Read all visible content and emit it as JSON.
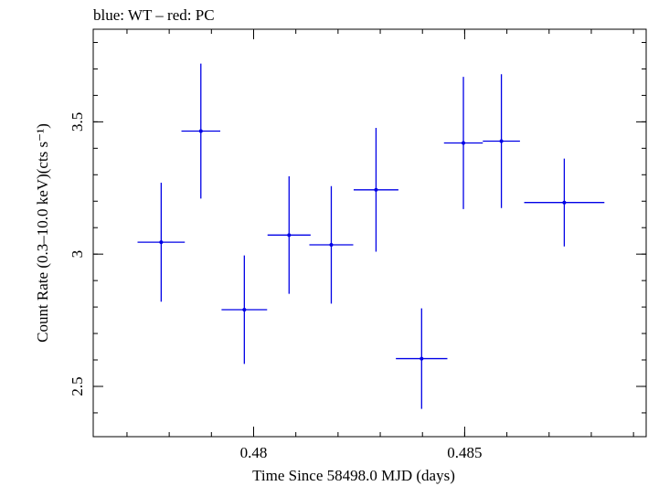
{
  "chart_data": {
    "type": "scatter",
    "title": "blue: WT – red: PC",
    "xlabel": "Time Since 58498.0 MJD (days)",
    "ylabel": "Count Rate (0.3–10.0 keV)(cts s⁻¹)",
    "xlim": [
      0.4762,
      0.4893
    ],
    "ylim": [
      2.31,
      3.85
    ],
    "x_ticks": [
      {
        "value": 0.48,
        "label": "0.48"
      },
      {
        "value": 0.485,
        "label": "0.485"
      }
    ],
    "y_ticks": [
      {
        "value": 2.5,
        "label": "2.5"
      },
      {
        "value": 3.0,
        "label": "3"
      },
      {
        "value": 3.5,
        "label": "3.5"
      }
    ],
    "x_minor_step": 0.001,
    "y_minor_step": 0.1,
    "grid": false,
    "series": [
      {
        "color": "#0000e6",
        "points": [
          {
            "x": 0.47781,
            "y": 3.045,
            "xerr": 0.00056,
            "yerr": 0.225
          },
          {
            "x": 0.47875,
            "y": 3.465,
            "xerr": 0.00046,
            "yerr": 0.255
          },
          {
            "x": 0.47978,
            "y": 2.79,
            "xerr": 0.00054,
            "yerr": 0.205
          },
          {
            "x": 0.48084,
            "y": 3.072,
            "xerr": 0.00051,
            "yerr": 0.222
          },
          {
            "x": 0.48184,
            "y": 3.035,
            "xerr": 0.00052,
            "yerr": 0.222
          },
          {
            "x": 0.4829,
            "y": 3.243,
            "xerr": 0.00053,
            "yerr": 0.234
          },
          {
            "x": 0.48398,
            "y": 2.605,
            "xerr": 0.00061,
            "yerr": 0.19
          },
          {
            "x": 0.48497,
            "y": 3.42,
            "xerr": 0.00046,
            "yerr": 0.25
          },
          {
            "x": 0.48587,
            "y": 3.427,
            "xerr": 0.00044,
            "yerr": 0.253
          },
          {
            "x": 0.48736,
            "y": 3.195,
            "xerr": 0.00095,
            "yerr": 0.166
          }
        ]
      }
    ]
  }
}
